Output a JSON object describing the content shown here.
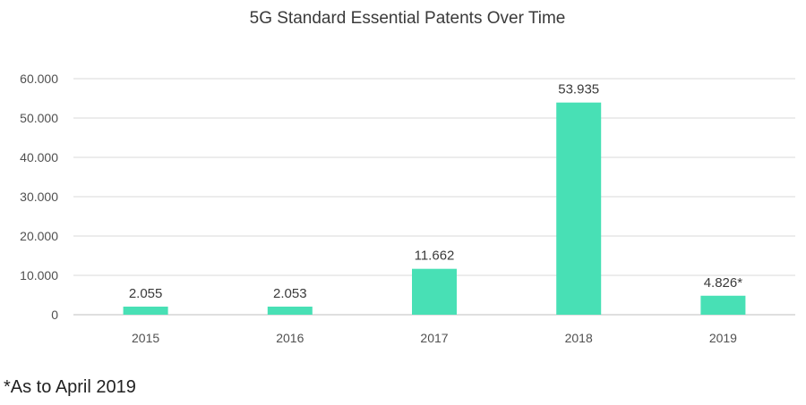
{
  "chart_data": {
    "type": "bar",
    "title": "5G Standard Essential Patents Over Time",
    "xlabel": "",
    "ylabel": "",
    "categories": [
      "2015",
      "2016",
      "2017",
      "2018",
      "2019"
    ],
    "values": [
      2055,
      2053,
      11662,
      53935,
      4826
    ],
    "data_labels": [
      "2.055",
      "2.053",
      "11.662",
      "53.935",
      "4.826*"
    ],
    "ylim": [
      0,
      60000
    ],
    "y_ticks": [
      0,
      10000,
      20000,
      30000,
      40000,
      50000,
      60000
    ],
    "y_tick_labels": [
      "0",
      "10.000",
      "20.000",
      "30.000",
      "40.000",
      "50.000",
      "60.000"
    ],
    "grid": true,
    "legend": "none",
    "bar_color": "#48e0b5"
  },
  "footnote": "*As to April 2019"
}
